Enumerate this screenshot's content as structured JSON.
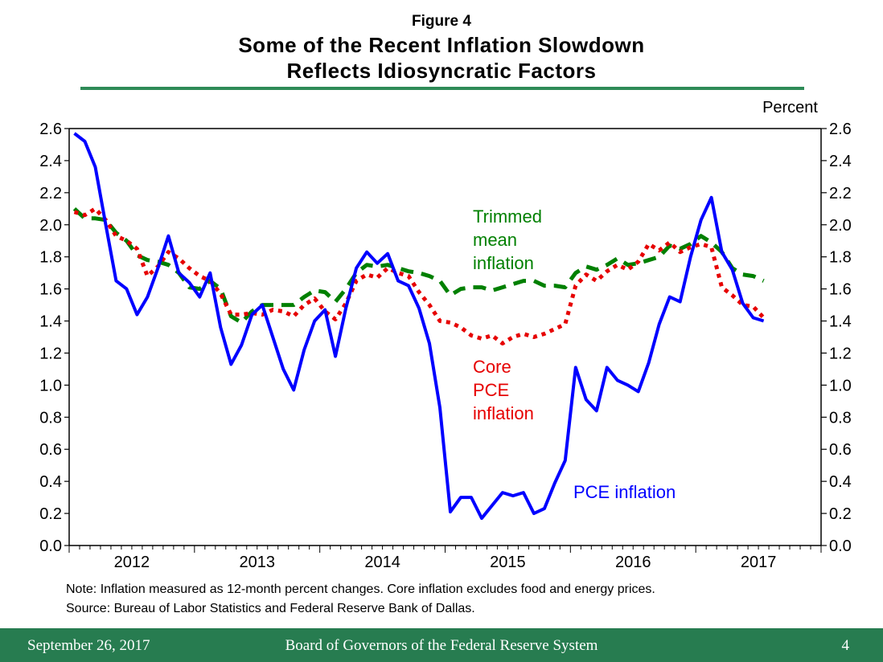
{
  "header": {
    "figure_label": "Figure 4",
    "title_line1": "Some of the Recent Inflation Slowdown",
    "title_line2": "Reflects Idiosyncratic Factors"
  },
  "notes": {
    "note": "Note: Inflation measured as 12-month percent changes. Core inflation excludes food and energy prices.",
    "source": "Source: Bureau of Labor Statistics and Federal Reserve Bank of Dallas."
  },
  "footer": {
    "date": "September 26, 2017",
    "organization": "Board of Governors of the Federal Reserve System",
    "page": "4"
  },
  "colors": {
    "pce": "#0000ff",
    "core": "#e60000",
    "trimmed": "#008000",
    "accent_green": "#277c50"
  },
  "chart_data": {
    "type": "line",
    "title": "Some of the Recent Inflation Slowdown Reflects Idiosyncratic Factors",
    "xlabel": "",
    "ylabel": "Percent",
    "ylim": [
      0.0,
      2.6
    ],
    "yticks": [
      "0.0",
      "0.2",
      "0.4",
      "0.6",
      "0.8",
      "1.0",
      "1.2",
      "1.4",
      "1.6",
      "1.8",
      "2.0",
      "2.2",
      "2.4",
      "2.6"
    ],
    "y_axis_sides": "left and right",
    "x_start": "2012-01",
    "x_end": "2018-01",
    "x_frequency": "monthly",
    "xtick_labels": [
      "2012",
      "2013",
      "2014",
      "2015",
      "2016",
      "2017"
    ],
    "grid": false,
    "legend": "inline labels",
    "series": [
      {
        "name": "PCE inflation",
        "label_lines": [
          "PCE inflation"
        ],
        "style": "solid",
        "color": "#0000ff",
        "start": "2012-01",
        "values": [
          2.57,
          2.52,
          2.36,
          2.0,
          1.65,
          1.6,
          1.44,
          1.55,
          1.73,
          1.93,
          1.7,
          1.64,
          1.55,
          1.7,
          1.36,
          1.13,
          1.25,
          1.44,
          1.5,
          1.3,
          1.1,
          0.97,
          1.22,
          1.4,
          1.47,
          1.18,
          1.48,
          1.73,
          1.83,
          1.76,
          1.82,
          1.65,
          1.62,
          1.48,
          1.26,
          0.86,
          0.21,
          0.3,
          0.3,
          0.17,
          0.25,
          0.33,
          0.31,
          0.33,
          0.2,
          0.23,
          0.39,
          0.53,
          1.11,
          0.91,
          0.84,
          1.11,
          1.03,
          1.0,
          0.96,
          1.14,
          1.38,
          1.55,
          1.52,
          1.8,
          2.03,
          2.17,
          1.83,
          1.72,
          1.51,
          1.42,
          1.4
        ]
      },
      {
        "name": "Core PCE inflation",
        "label_lines": [
          "Core",
          "PCE",
          "inflation"
        ],
        "style": "dotted",
        "color": "#e60000",
        "start": "2012-01",
        "values": [
          2.08,
          2.06,
          2.1,
          2.03,
          1.93,
          1.9,
          1.85,
          1.68,
          1.74,
          1.83,
          1.79,
          1.73,
          1.68,
          1.65,
          1.57,
          1.44,
          1.44,
          1.45,
          1.44,
          1.47,
          1.46,
          1.43,
          1.5,
          1.54,
          1.46,
          1.41,
          1.51,
          1.65,
          1.69,
          1.67,
          1.73,
          1.7,
          1.68,
          1.58,
          1.5,
          1.4,
          1.39,
          1.36,
          1.31,
          1.29,
          1.31,
          1.26,
          1.3,
          1.32,
          1.3,
          1.32,
          1.35,
          1.38,
          1.62,
          1.69,
          1.65,
          1.71,
          1.75,
          1.72,
          1.77,
          1.88,
          1.84,
          1.89,
          1.83,
          1.86,
          1.88,
          1.86,
          1.61,
          1.56,
          1.5,
          1.49,
          1.42
        ]
      },
      {
        "name": "Trimmed mean inflation",
        "label_lines": [
          "Trimmed",
          "mean",
          "inflation"
        ],
        "style": "dashed",
        "color": "#008000",
        "start": "2012-01",
        "values": [
          2.1,
          2.04,
          2.04,
          2.03,
          1.95,
          1.9,
          1.81,
          1.78,
          1.77,
          1.75,
          1.7,
          1.61,
          1.6,
          1.65,
          1.6,
          1.43,
          1.39,
          1.46,
          1.5,
          1.5,
          1.5,
          1.5,
          1.55,
          1.59,
          1.58,
          1.52,
          1.6,
          1.7,
          1.75,
          1.74,
          1.75,
          1.73,
          1.71,
          1.7,
          1.68,
          1.65,
          1.56,
          1.6,
          1.61,
          1.61,
          1.59,
          1.61,
          1.63,
          1.65,
          1.65,
          1.62,
          1.62,
          1.61,
          1.7,
          1.74,
          1.72,
          1.75,
          1.79,
          1.75,
          1.76,
          1.78,
          1.8,
          1.87,
          1.85,
          1.88,
          1.93,
          1.89,
          1.83,
          1.73,
          1.69,
          1.68,
          1.65
        ]
      }
    ]
  }
}
